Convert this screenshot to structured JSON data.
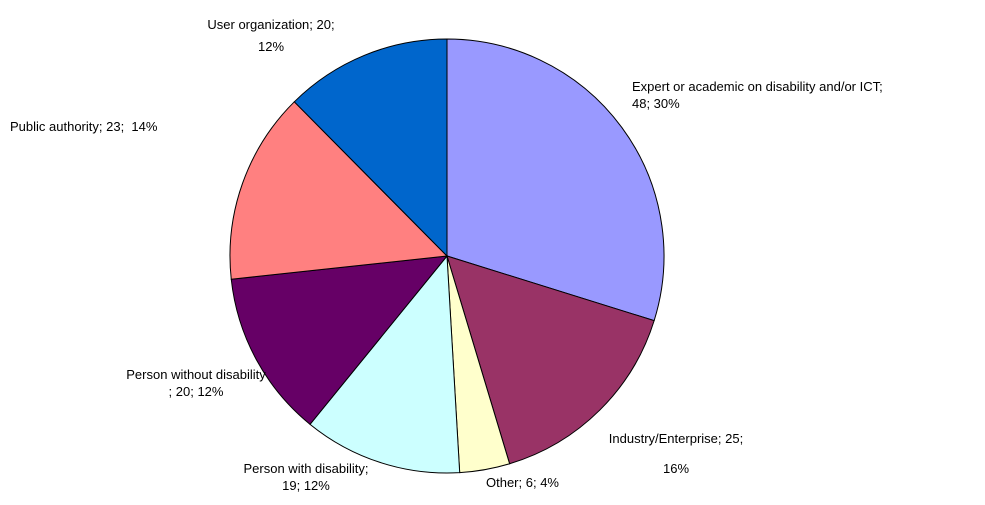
{
  "chart_data": {
    "type": "pie",
    "categories": [
      "Expert or academic on disability and/or ICT;",
      "Industry/Enterprise;",
      "Other;",
      "Person with disability;",
      "Person without disability ;",
      "Public authority;",
      "User organization;"
    ],
    "values": [
      48,
      25,
      6,
      19,
      20,
      23,
      20
    ],
    "value_labels": [
      "48; 30%",
      "25; 16%",
      "6; 4%",
      "19; 12%",
      "20; 12%",
      "23;  14%",
      "20; 12%"
    ],
    "colors": [
      "#9999ff",
      "#993366",
      "#ffffcc",
      "#ccffff",
      "#660066",
      "#ff8080",
      "#0066cc"
    ]
  }
}
